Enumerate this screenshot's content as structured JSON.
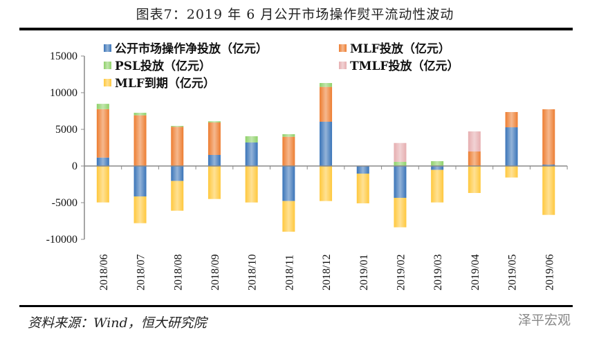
{
  "title": "图表7：2019 年 6 月公开市场操作熨平流动性波动",
  "source": "资料来源：Wind，恒大研究院",
  "watermark": "泽平宏观",
  "chart_data": {
    "type": "bar",
    "stacked": true,
    "categories": [
      "2018/06",
      "2018/07",
      "2018/08",
      "2018/09",
      "2018/10",
      "2018/11",
      "2018/12",
      "2019/01",
      "2019/02",
      "2019/03",
      "2019/04",
      "2019/05",
      "2019/06"
    ],
    "ylim": [
      -10000,
      15000
    ],
    "yticks": [
      -10000,
      -5000,
      0,
      5000,
      10000,
      15000
    ],
    "grid": false,
    "legend": "top",
    "series": [
      {
        "name": "公开市场操作净投放（亿元）",
        "color": "#3a74b8",
        "values": [
          1150,
          -4150,
          -2040,
          1510,
          3210,
          -4780,
          6040,
          -1040,
          -4340,
          -530,
          0,
          5280,
          190
        ]
      },
      {
        "name": "MLF投放（亿元）",
        "color": "#ed7d31",
        "values": [
          6610,
          6920,
          5350,
          4430,
          0,
          3990,
          4750,
          0,
          0,
          0,
          1980,
          2080,
          7550
        ]
      },
      {
        "name": "PSL投放（亿元）",
        "color": "#8fd16a",
        "values": [
          720,
          340,
          120,
          160,
          850,
          350,
          530,
          0,
          570,
          660,
          0,
          0,
          0
        ]
      },
      {
        "name": "TMLF投放（亿元）",
        "color": "#e6aeb0",
        "values": [
          0,
          0,
          0,
          0,
          0,
          0,
          0,
          0,
          2570,
          0,
          2740,
          0,
          0
        ]
      },
      {
        "name": "MLF到期（亿元）",
        "color": "#ffc83d",
        "values": [
          -4970,
          -3650,
          -4060,
          -4500,
          -4975,
          -4180,
          -4780,
          -4050,
          -4020,
          -4440,
          -3680,
          -1570,
          -6670
        ]
      }
    ]
  }
}
